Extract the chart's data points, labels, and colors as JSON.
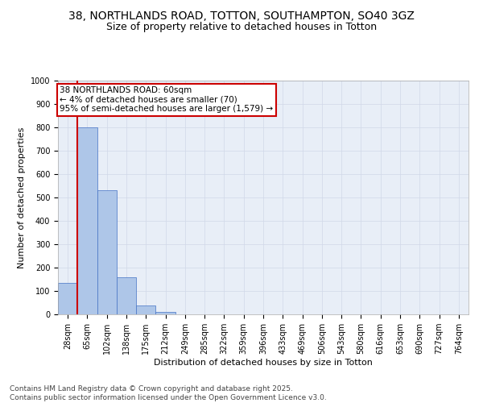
{
  "title_line1": "38, NORTHLANDS ROAD, TOTTON, SOUTHAMPTON, SO40 3GZ",
  "title_line2": "Size of property relative to detached houses in Totton",
  "xlabel": "Distribution of detached houses by size in Totton",
  "ylabel": "Number of detached properties",
  "categories": [
    "28sqm",
    "65sqm",
    "102sqm",
    "138sqm",
    "175sqm",
    "212sqm",
    "249sqm",
    "285sqm",
    "322sqm",
    "359sqm",
    "396sqm",
    "433sqm",
    "469sqm",
    "506sqm",
    "543sqm",
    "580sqm",
    "616sqm",
    "653sqm",
    "690sqm",
    "727sqm",
    "764sqm"
  ],
  "values": [
    135,
    800,
    530,
    160,
    38,
    12,
    0,
    0,
    0,
    0,
    0,
    0,
    0,
    0,
    0,
    0,
    0,
    0,
    0,
    0,
    0
  ],
  "bar_color": "#aec6e8",
  "bar_edge_color": "#4472c4",
  "vline_color": "#cc0000",
  "annotation_text": "38 NORTHLANDS ROAD: 60sqm\n← 4% of detached houses are smaller (70)\n95% of semi-detached houses are larger (1,579) →",
  "annotation_box_color": "#cc0000",
  "annotation_bg": "#ffffff",
  "ylim": [
    0,
    1000
  ],
  "yticks": [
    0,
    100,
    200,
    300,
    400,
    500,
    600,
    700,
    800,
    900,
    1000
  ],
  "grid_color": "#d0d8e8",
  "bg_color": "#e8eef7",
  "footer_line1": "Contains HM Land Registry data © Crown copyright and database right 2025.",
  "footer_line2": "Contains public sector information licensed under the Open Government Licence v3.0.",
  "title_fontsize": 10,
  "subtitle_fontsize": 9,
  "label_fontsize": 8,
  "tick_fontsize": 7,
  "footer_fontsize": 6.5,
  "ann_fontsize": 7.5
}
